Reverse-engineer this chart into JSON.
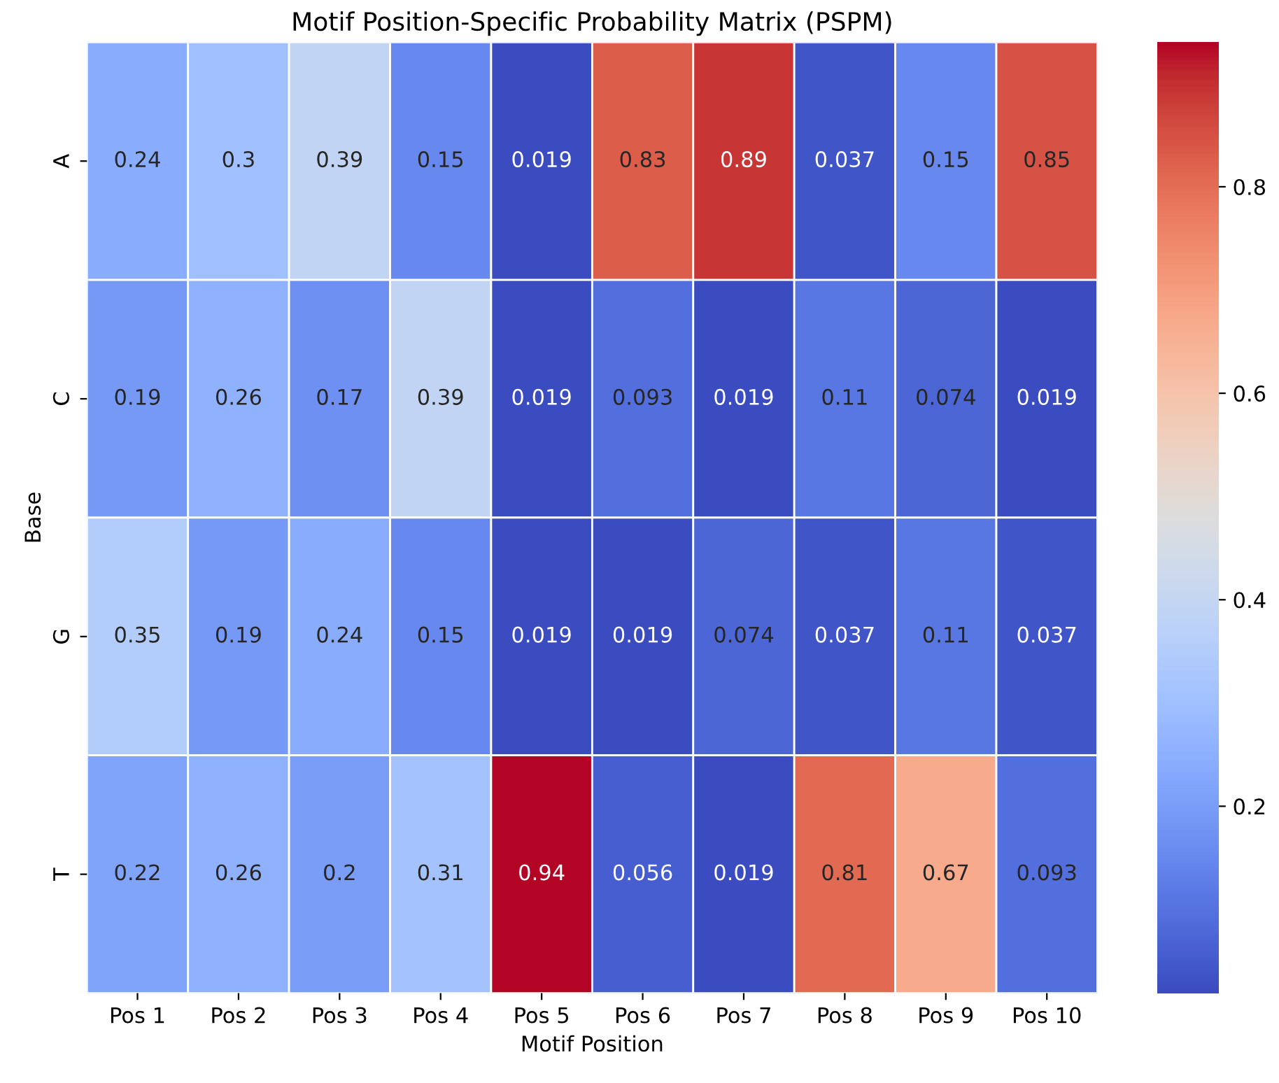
{
  "chart_data": {
    "type": "heatmap",
    "title": "Motif Position-Specific Probability Matrix (PSPM)",
    "xlabel": "Motif Position",
    "ylabel": "Base",
    "categories": [
      "Pos 1",
      "Pos 2",
      "Pos 3",
      "Pos 4",
      "Pos 5",
      "Pos 6",
      "Pos 7",
      "Pos 8",
      "Pos 9",
      "Pos 10"
    ],
    "y_categories": [
      "A",
      "C",
      "G",
      "T"
    ],
    "cells": [
      [
        0.24,
        0.3,
        0.39,
        0.15,
        0.019,
        0.83,
        0.89,
        0.037,
        0.15,
        0.85
      ],
      [
        0.19,
        0.26,
        0.17,
        0.39,
        0.019,
        0.093,
        0.019,
        0.11,
        0.074,
        0.019
      ],
      [
        0.35,
        0.19,
        0.24,
        0.15,
        0.019,
        0.019,
        0.074,
        0.037,
        0.11,
        0.037
      ],
      [
        0.22,
        0.26,
        0.2,
        0.31,
        0.94,
        0.056,
        0.019,
        0.81,
        0.67,
        0.093
      ]
    ],
    "clim": [
      0.019,
      0.94
    ],
    "cticks": [
      0.2,
      0.4,
      0.6,
      0.8
    ],
    "data_labels": true
  }
}
